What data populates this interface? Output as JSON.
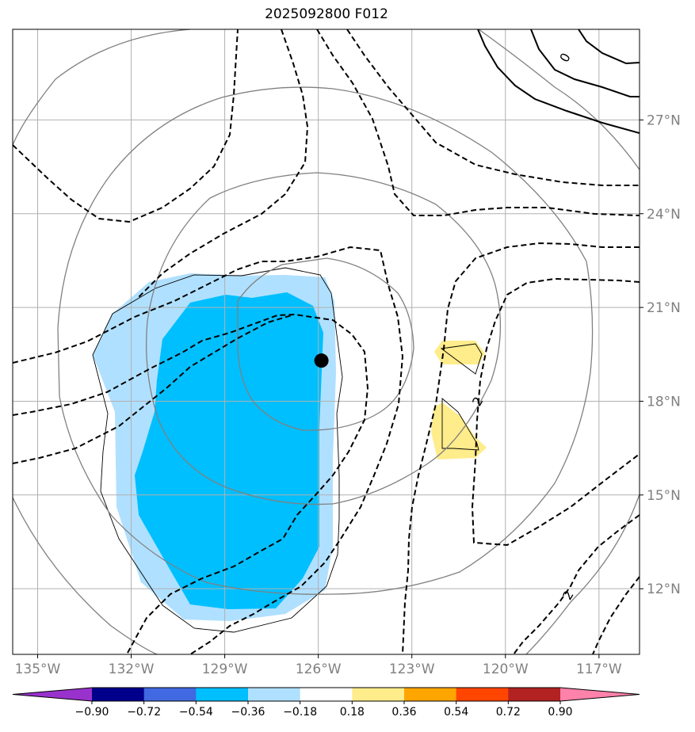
{
  "title": "2025092800 F012",
  "map": {
    "x_axis": {
      "range": [
        -135.8,
        -115.7
      ],
      "ticks": [
        {
          "value": -135,
          "label": "135°W"
        },
        {
          "value": -132,
          "label": "132°W"
        },
        {
          "value": -129,
          "label": "129°W"
        },
        {
          "value": -126,
          "label": "126°W"
        },
        {
          "value": -123,
          "label": "123°W"
        },
        {
          "value": -120,
          "label": "120°W"
        },
        {
          "value": -117,
          "label": "117°W"
        }
      ]
    },
    "y_axis": {
      "range": [
        9.9,
        29.9
      ],
      "ticks": [
        {
          "value": 12,
          "label": "12°N"
        },
        {
          "value": 15,
          "label": "15°N"
        },
        {
          "value": 18,
          "label": "18°N"
        },
        {
          "value": 21,
          "label": "21°N"
        },
        {
          "value": 24,
          "label": "24°N"
        },
        {
          "value": 27,
          "label": "27°N"
        }
      ]
    },
    "storm_center": {
      "lon": -125.9,
      "lat": 19.3
    },
    "contour_labels": [
      {
        "text": "2",
        "lon": -120.9,
        "lat": 18.0
      },
      {
        "text": "2",
        "lon": -118.0,
        "lat": 11.8
      },
      {
        "text": "0",
        "lon": -118.1,
        "lat": 29.0
      }
    ]
  },
  "colorbar": {
    "colors": [
      "#9932cc",
      "#00008b",
      "#4169e1",
      "#00bfff",
      "#b0e0ff",
      "#ffffff",
      "#ffec8b",
      "#ffa500",
      "#ff4500",
      "#b22222",
      "#ff82ab"
    ],
    "tick_labels": [
      "−0.90",
      "−0.72",
      "−0.54",
      "−0.36",
      "−0.18",
      "0.18",
      "0.36",
      "0.54",
      "0.72",
      "0.90"
    ]
  }
}
